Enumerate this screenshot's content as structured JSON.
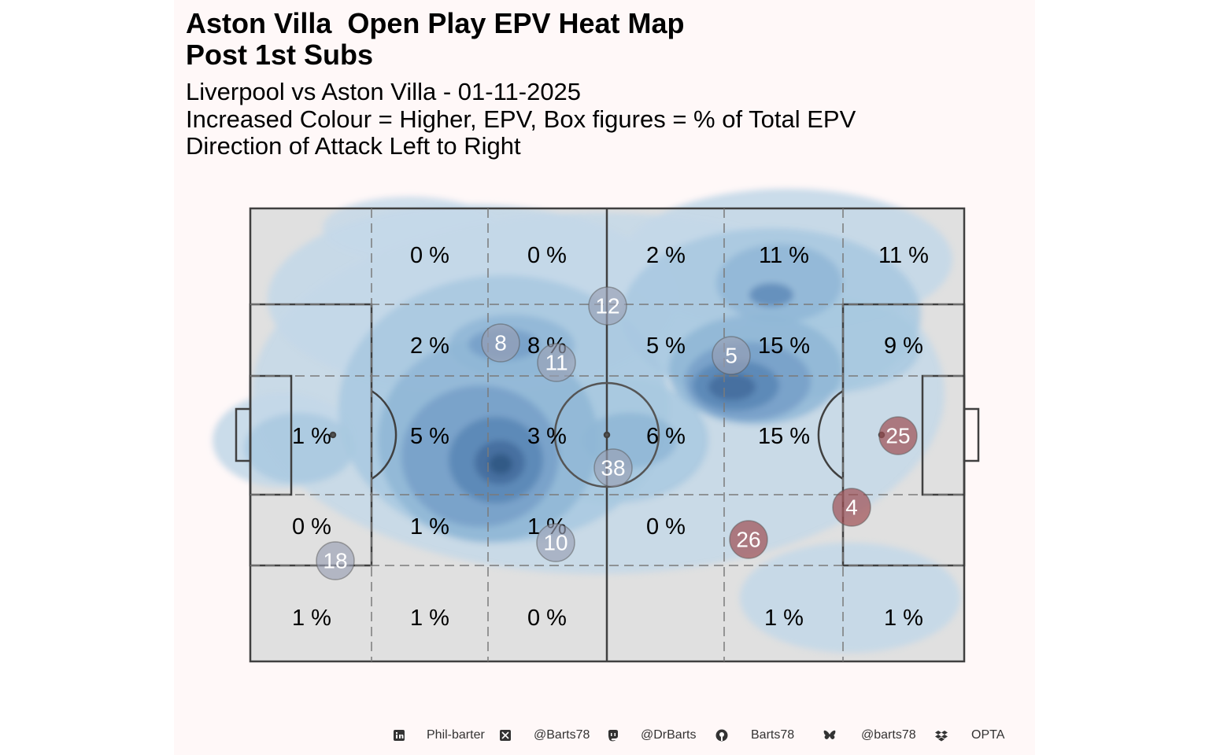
{
  "title": {
    "line1": "Aston Villa  Open Play EPV Heat Map",
    "line2": "Post 1st Subs"
  },
  "subtitle": {
    "line1": "Liverpool vs Aston Villa - 01-11-2025",
    "line2": "Increased Colour = Higher, EPV, Box figures = % of Total EPV",
    "line3": "Direction of Attack Left to Right"
  },
  "footer": {
    "items": [
      {
        "icon": "linkedin-icon",
        "text": "Phil-barter"
      },
      {
        "icon": "x-twitter-icon",
        "text": "@Barts78"
      },
      {
        "icon": "mastodon-icon",
        "text": "@DrBarts"
      },
      {
        "icon": "github-icon",
        "text": "Barts78"
      },
      {
        "icon": "bluesky-icon",
        "text": "@barts78"
      },
      {
        "icon": "dropbox-icon",
        "text": "OPTA"
      }
    ]
  },
  "chart_data": {
    "type": "heatmap",
    "pitch": {
      "direction": "left-to-right",
      "zones_x": 6,
      "zones_y": 5
    },
    "zone_percentages": [
      [
        "",
        "0 %",
        "0 %",
        "2 %",
        "11 %",
        "11 %"
      ],
      [
        "",
        "2 %",
        "8 %",
        "5 %",
        "15 %",
        "9 %"
      ],
      [
        "1 %",
        "5 %",
        "3 %",
        "6 %",
        "15 %",
        ""
      ],
      [
        "0 %",
        "1 %",
        "1 %",
        "0 %",
        "",
        ""
      ],
      [
        "1 %",
        "1 %",
        "0 %",
        "",
        "1 %",
        "1 %"
      ]
    ],
    "players": [
      {
        "number": "12",
        "team": "away"
      },
      {
        "number": "8",
        "team": "away"
      },
      {
        "number": "11",
        "team": "away"
      },
      {
        "number": "5",
        "team": "away"
      },
      {
        "number": "38",
        "team": "away"
      },
      {
        "number": "10",
        "team": "away"
      },
      {
        "number": "18",
        "team": "away"
      },
      {
        "number": "25",
        "team": "home"
      },
      {
        "number": "4",
        "team": "home"
      },
      {
        "number": "26",
        "team": "home"
      }
    ],
    "colors": {
      "pitch": "#e0e0e0",
      "lines": "#404040",
      "heat": [
        "#c4d8e8",
        "#a8c8e0",
        "#8fb6d6",
        "#759fc8",
        "#5a87b6",
        "#466e9e",
        "#335a86"
      ],
      "away_marker": "#9aa0b4",
      "home_marker": "#9e4e52",
      "marker_text": "#ffffff"
    }
  }
}
